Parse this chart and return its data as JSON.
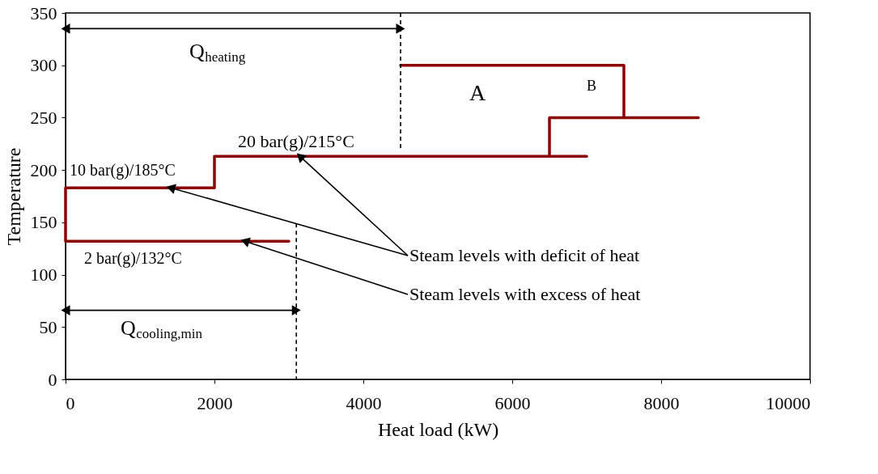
{
  "chart_data": {
    "type": "line",
    "xlabel": "Heat load (kW)",
    "ylabel": "Temperature",
    "xlim": [
      0,
      10000
    ],
    "xticks": [
      0,
      2000,
      4000,
      6000,
      8000,
      10000
    ],
    "ylim": [
      0,
      350
    ],
    "yticks": [
      0,
      50,
      100,
      150,
      200,
      250,
      300,
      350
    ],
    "grid": false,
    "series": [
      {
        "color": "#8b0000",
        "x": [
          3000,
          0,
          0,
          2000,
          2000,
          7000
        ],
        "values": [
          132,
          132,
          183,
          183,
          213,
          213
        ]
      },
      {
        "color": "#8b0000",
        "x": [
          6500,
          6500,
          8500
        ],
        "values": [
          213,
          250,
          250
        ]
      },
      {
        "color": "#8b0000",
        "x": [
          4500,
          7500,
          7500
        ],
        "values": [
          300,
          300,
          250
        ]
      },
      {
        "color": "#000000",
        "line_style": "dashed",
        "x": [
          4500,
          4500
        ],
        "values": [
          350,
          220
        ]
      },
      {
        "color": "#000000",
        "line_style": "dashed",
        "x": [
          3100,
          3100
        ],
        "values": [
          149,
          0
        ]
      },
      {
        "color": "#000000",
        "marker": "triangle",
        "x": [
          0,
          4500
        ],
        "values": [
          335,
          335
        ]
      },
      {
        "color": "#000000",
        "marker": "triangle",
        "x": [
          0,
          3100
        ],
        "values": [
          66,
          66
        ]
      }
    ],
    "annotations": [
      "10 bar(g)/185°C",
      {
        "text": "20 bar(g)/215°C",
        "x": 3150,
        "y": 213
      },
      "2 bar(g)/132°C",
      "Q$_{heating}$",
      "Q$_{cooling,min}$",
      {
        "text": "Steam levels with deficit of heat",
        "x": 1413,
        "y": 183
      },
      {
        "text": "Steam levels with excess of heat",
        "x": 2410,
        "y": 132
      },
      "A",
      "B"
    ]
  }
}
